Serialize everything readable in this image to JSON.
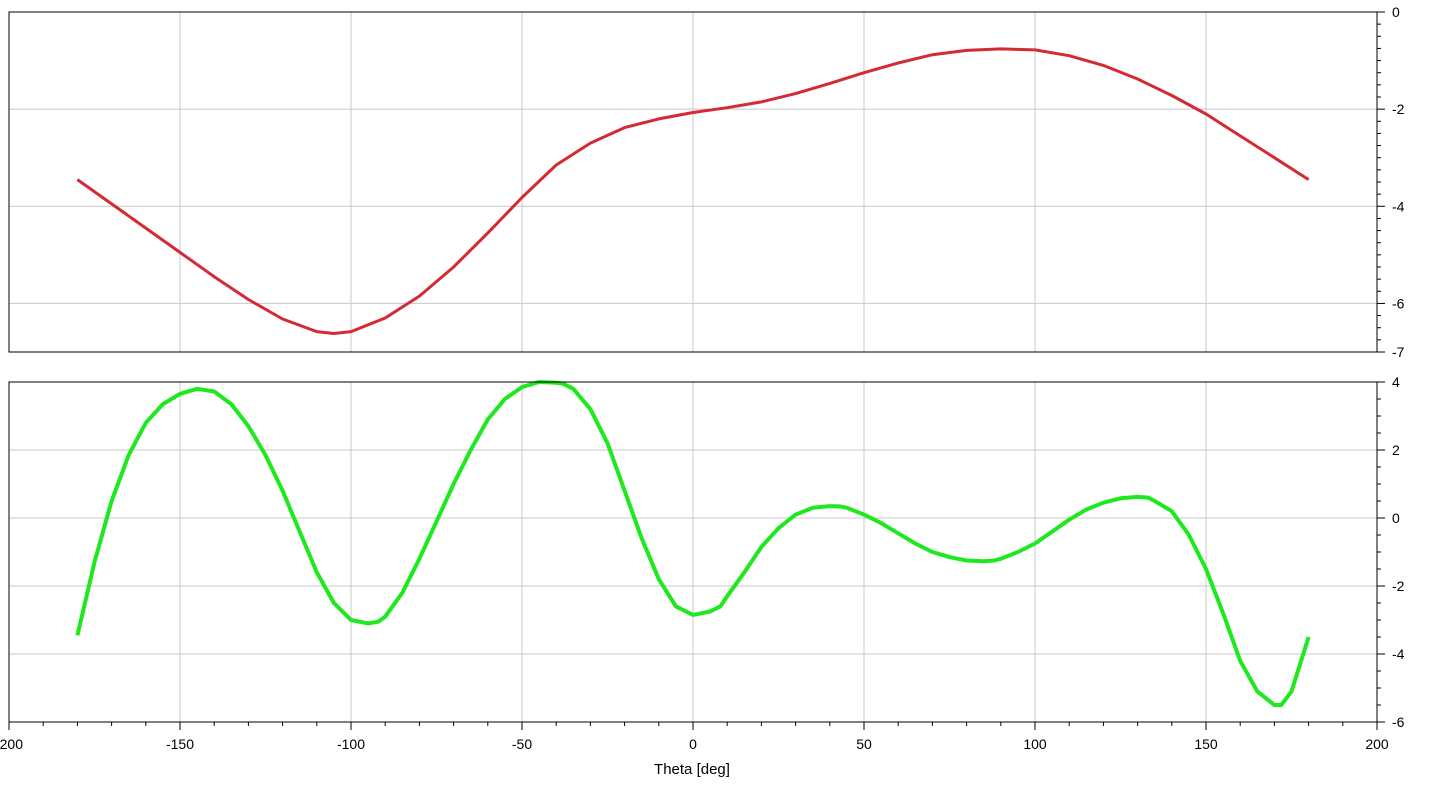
{
  "xlabel": "Theta [deg]",
  "x_ticks": [
    "-200",
    "-150",
    "-100",
    "-50",
    "0",
    "50",
    "100",
    "150",
    "200"
  ],
  "chart_data": [
    {
      "type": "line",
      "xlabel": "",
      "ylabel": "",
      "xlim": [
        -200,
        200
      ],
      "ylim": [
        -7,
        0
      ],
      "y_ticks": [
        "0",
        "-2",
        "-4",
        "-6",
        "-7"
      ],
      "y_axis_side": "right",
      "grid": true,
      "series": [
        {
          "color": "#d42a34",
          "x": [
            -180,
            -170,
            -160,
            -150,
            -140,
            -130,
            -120,
            -110,
            -105,
            -100,
            -90,
            -80,
            -70,
            -60,
            -50,
            -40,
            -30,
            -20,
            -10,
            0,
            10,
            20,
            30,
            40,
            50,
            60,
            70,
            80,
            90,
            100,
            110,
            120,
            130,
            140,
            150,
            160,
            170,
            180
          ],
          "y": [
            -3.45,
            -3.95,
            -4.45,
            -4.95,
            -5.45,
            -5.92,
            -6.32,
            -6.58,
            -6.62,
            -6.58,
            -6.3,
            -5.85,
            -5.25,
            -4.55,
            -3.82,
            -3.15,
            -2.7,
            -2.38,
            -2.2,
            -2.07,
            -1.97,
            -1.85,
            -1.68,
            -1.47,
            -1.25,
            -1.05,
            -0.88,
            -0.79,
            -0.76,
            -0.78,
            -0.9,
            -1.1,
            -1.38,
            -1.72,
            -2.1,
            -2.55,
            -3.0,
            -3.45
          ]
        }
      ]
    },
    {
      "type": "line",
      "xlabel": "Theta [deg]",
      "ylabel": "",
      "xlim": [
        -200,
        200
      ],
      "ylim": [
        -6,
        4
      ],
      "y_ticks": [
        "4",
        "2",
        "0",
        "-2",
        "-4",
        "-6"
      ],
      "y_axis_side": "right",
      "grid": true,
      "series": [
        {
          "color": "#1ee81e",
          "x": [
            -180,
            -175,
            -170,
            -165,
            -160,
            -155,
            -150,
            -145,
            -140,
            -135,
            -130,
            -125,
            -120,
            -115,
            -110,
            -105,
            -100,
            -95,
            -92,
            -90,
            -85,
            -80,
            -75,
            -70,
            -65,
            -60,
            -55,
            -50,
            -45,
            -40,
            -38,
            -35,
            -30,
            -25,
            -20,
            -15,
            -10,
            -5,
            0,
            5,
            8,
            10,
            15,
            20,
            25,
            30,
            35,
            40,
            43,
            45,
            50,
            55,
            60,
            65,
            70,
            75,
            80,
            85,
            88,
            90,
            95,
            100,
            105,
            110,
            115,
            120,
            125,
            130,
            133,
            135,
            140,
            145,
            150,
            155,
            160,
            165,
            170,
            172,
            175,
            180
          ],
          "y": [
            -3.45,
            -1.3,
            0.5,
            1.85,
            2.8,
            3.35,
            3.65,
            3.8,
            3.72,
            3.35,
            2.7,
            1.85,
            0.8,
            -0.4,
            -1.6,
            -2.5,
            -3.0,
            -3.1,
            -3.05,
            -2.9,
            -2.2,
            -1.2,
            -0.1,
            1.0,
            2.0,
            2.9,
            3.5,
            3.85,
            4.0,
            3.98,
            3.95,
            3.8,
            3.2,
            2.2,
            0.8,
            -0.6,
            -1.8,
            -2.6,
            -2.85,
            -2.75,
            -2.6,
            -2.3,
            -1.6,
            -0.85,
            -0.3,
            0.1,
            0.3,
            0.35,
            0.34,
            0.3,
            0.1,
            -0.15,
            -0.45,
            -0.75,
            -1.0,
            -1.15,
            -1.25,
            -1.27,
            -1.25,
            -1.2,
            -1.0,
            -0.75,
            -0.4,
            -0.05,
            0.25,
            0.45,
            0.58,
            0.62,
            0.6,
            0.5,
            0.2,
            -0.5,
            -1.5,
            -2.8,
            -4.2,
            -5.1,
            -5.5,
            -5.5,
            -5.1,
            -3.5
          ]
        }
      ]
    }
  ]
}
